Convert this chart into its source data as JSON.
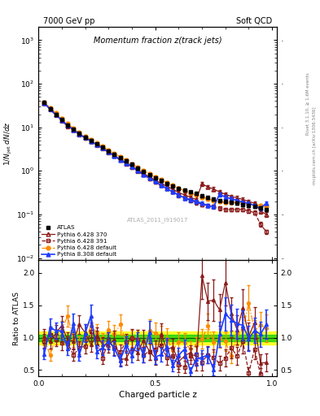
{
  "title_top": "7000 GeV pp",
  "title_right": "Soft QCD",
  "plot_title": "Momentum fraction z(track jets)",
  "ylabel_main": "1/N$_{jet}$ dN/dz",
  "ylabel_ratio": "Ratio to ATLAS",
  "xlabel": "Charged particle z",
  "right_label_top": "Rivet 3.1.10, ≥ 1.6M events",
  "right_label_bot": "mcplots.cern.ch [arXiv:1306.3436]",
  "watermark": "ATLAS_2011_I919017",
  "atlas_x": [
    0.025,
    0.05,
    0.075,
    0.1,
    0.125,
    0.15,
    0.175,
    0.2,
    0.225,
    0.25,
    0.275,
    0.3,
    0.325,
    0.35,
    0.375,
    0.4,
    0.425,
    0.45,
    0.475,
    0.5,
    0.525,
    0.55,
    0.575,
    0.6,
    0.625,
    0.65,
    0.675,
    0.7,
    0.725,
    0.75,
    0.775,
    0.8,
    0.825,
    0.85,
    0.875,
    0.9,
    0.925,
    0.95,
    0.975
  ],
  "atlas_y": [
    38,
    27,
    20,
    15,
    11,
    9,
    7.2,
    6.0,
    5.0,
    4.2,
    3.5,
    2.9,
    2.4,
    2.0,
    1.7,
    1.4,
    1.15,
    0.95,
    0.8,
    0.7,
    0.6,
    0.52,
    0.45,
    0.4,
    0.36,
    0.33,
    0.31,
    0.27,
    0.25,
    0.23,
    0.21,
    0.2,
    0.19,
    0.18,
    0.17,
    0.16,
    0.15,
    0.14,
    0.13
  ],
  "atlas_ey": [
    2.0,
    1.5,
    1.1,
    0.8,
    0.6,
    0.5,
    0.4,
    0.35,
    0.3,
    0.25,
    0.22,
    0.18,
    0.15,
    0.13,
    0.11,
    0.09,
    0.08,
    0.07,
    0.06,
    0.05,
    0.04,
    0.04,
    0.03,
    0.03,
    0.03,
    0.02,
    0.02,
    0.02,
    0.02,
    0.02,
    0.015,
    0.015,
    0.015,
    0.015,
    0.015,
    0.015,
    0.012,
    0.012,
    0.012
  ],
  "py6370_x": [
    0.025,
    0.05,
    0.075,
    0.1,
    0.125,
    0.15,
    0.175,
    0.2,
    0.225,
    0.25,
    0.275,
    0.3,
    0.325,
    0.35,
    0.375,
    0.4,
    0.425,
    0.45,
    0.475,
    0.5,
    0.525,
    0.55,
    0.575,
    0.6,
    0.625,
    0.65,
    0.675,
    0.7,
    0.725,
    0.75,
    0.775,
    0.8,
    0.825,
    0.85,
    0.875,
    0.9,
    0.925,
    0.95,
    0.975
  ],
  "py6370_y": [
    36,
    26,
    19.5,
    14.5,
    11.0,
    8.8,
    7.0,
    5.8,
    4.8,
    4.0,
    3.35,
    2.75,
    2.25,
    1.85,
    1.55,
    1.28,
    1.05,
    0.87,
    0.73,
    0.61,
    0.52,
    0.44,
    0.38,
    0.32,
    0.28,
    0.25,
    0.22,
    0.5,
    0.43,
    0.38,
    0.33,
    0.29,
    0.26,
    0.24,
    0.22,
    0.2,
    0.18,
    0.12,
    0.1
  ],
  "py6370_ey": [
    2.0,
    1.5,
    1.1,
    0.9,
    0.7,
    0.5,
    0.4,
    0.35,
    0.3,
    0.25,
    0.22,
    0.18,
    0.15,
    0.13,
    0.11,
    0.09,
    0.08,
    0.07,
    0.06,
    0.05,
    0.04,
    0.04,
    0.03,
    0.03,
    0.03,
    0.02,
    0.02,
    0.05,
    0.04,
    0.04,
    0.03,
    0.03,
    0.025,
    0.025,
    0.022,
    0.02,
    0.018,
    0.015,
    0.012
  ],
  "py6391_x": [
    0.025,
    0.05,
    0.075,
    0.1,
    0.125,
    0.15,
    0.175,
    0.2,
    0.225,
    0.25,
    0.275,
    0.3,
    0.325,
    0.35,
    0.375,
    0.4,
    0.425,
    0.45,
    0.475,
    0.5,
    0.525,
    0.55,
    0.575,
    0.6,
    0.625,
    0.65,
    0.675,
    0.7,
    0.725,
    0.75,
    0.775,
    0.8,
    0.825,
    0.85,
    0.875,
    0.9,
    0.925,
    0.95,
    0.975
  ],
  "py6391_y": [
    35,
    25.5,
    19.0,
    14.0,
    10.5,
    8.5,
    6.8,
    5.6,
    4.7,
    3.9,
    3.25,
    2.65,
    2.15,
    1.75,
    1.45,
    1.2,
    0.98,
    0.8,
    0.66,
    0.55,
    0.46,
    0.39,
    0.33,
    0.28,
    0.24,
    0.21,
    0.19,
    0.17,
    0.16,
    0.15,
    0.14,
    0.13,
    0.13,
    0.13,
    0.13,
    0.12,
    0.11,
    0.06,
    0.04
  ],
  "py6391_ey": [
    2.0,
    1.4,
    1.0,
    0.8,
    0.6,
    0.5,
    0.4,
    0.35,
    0.3,
    0.25,
    0.2,
    0.17,
    0.14,
    0.12,
    0.1,
    0.09,
    0.07,
    0.06,
    0.05,
    0.04,
    0.04,
    0.03,
    0.03,
    0.03,
    0.02,
    0.02,
    0.02,
    0.02,
    0.015,
    0.015,
    0.014,
    0.013,
    0.013,
    0.013,
    0.013,
    0.012,
    0.011,
    0.007,
    0.005
  ],
  "py6def_x": [
    0.025,
    0.05,
    0.075,
    0.1,
    0.125,
    0.15,
    0.175,
    0.2,
    0.225,
    0.25,
    0.275,
    0.3,
    0.325,
    0.35,
    0.375,
    0.4,
    0.425,
    0.45,
    0.475,
    0.5,
    0.525,
    0.55,
    0.575,
    0.6,
    0.625,
    0.65,
    0.675,
    0.7,
    0.725,
    0.75,
    0.775,
    0.8,
    0.825,
    0.85,
    0.875,
    0.9,
    0.925,
    0.95,
    0.975
  ],
  "py6def_y": [
    37,
    28,
    21,
    16,
    12,
    9.5,
    7.5,
    6.2,
    5.2,
    4.3,
    3.6,
    3.0,
    2.5,
    2.1,
    1.75,
    1.45,
    1.2,
    1.0,
    0.85,
    0.72,
    0.62,
    0.53,
    0.46,
    0.4,
    0.35,
    0.31,
    0.28,
    0.25,
    0.23,
    0.21,
    0.2,
    0.19,
    0.19,
    0.19,
    0.19,
    0.18,
    0.17,
    0.16,
    0.15
  ],
  "py6def_ey": [
    2.0,
    1.6,
    1.2,
    0.9,
    0.7,
    0.55,
    0.43,
    0.36,
    0.3,
    0.26,
    0.22,
    0.19,
    0.16,
    0.13,
    0.11,
    0.09,
    0.08,
    0.07,
    0.06,
    0.05,
    0.04,
    0.04,
    0.03,
    0.03,
    0.025,
    0.022,
    0.02,
    0.018,
    0.016,
    0.015,
    0.014,
    0.013,
    0.013,
    0.013,
    0.013,
    0.012,
    0.012,
    0.012,
    0.012
  ],
  "py8def_x": [
    0.025,
    0.05,
    0.075,
    0.1,
    0.125,
    0.15,
    0.175,
    0.2,
    0.225,
    0.25,
    0.275,
    0.3,
    0.325,
    0.35,
    0.375,
    0.4,
    0.425,
    0.45,
    0.475,
    0.5,
    0.525,
    0.55,
    0.575,
    0.6,
    0.625,
    0.65,
    0.675,
    0.7,
    0.725,
    0.75,
    0.775,
    0.8,
    0.825,
    0.85,
    0.875,
    0.9,
    0.925,
    0.95,
    0.975
  ],
  "py8def_y": [
    36,
    26,
    19.5,
    14.5,
    11.0,
    8.8,
    7.0,
    5.8,
    4.8,
    4.0,
    3.3,
    2.7,
    2.2,
    1.8,
    1.5,
    1.25,
    1.0,
    0.83,
    0.68,
    0.57,
    0.47,
    0.39,
    0.33,
    0.28,
    0.24,
    0.22,
    0.2,
    0.18,
    0.16,
    0.15,
    0.29,
    0.25,
    0.23,
    0.21,
    0.19,
    0.18,
    0.16,
    0.14,
    0.18
  ],
  "py8def_ey": [
    2.0,
    1.5,
    1.1,
    0.9,
    0.7,
    0.5,
    0.4,
    0.35,
    0.3,
    0.25,
    0.22,
    0.18,
    0.15,
    0.12,
    0.1,
    0.09,
    0.07,
    0.06,
    0.05,
    0.04,
    0.035,
    0.03,
    0.025,
    0.022,
    0.02,
    0.018,
    0.016,
    0.014,
    0.013,
    0.012,
    0.03,
    0.025,
    0.022,
    0.02,
    0.018,
    0.016,
    0.014,
    0.012,
    0.015
  ],
  "color_atlas": "#000000",
  "color_py6370": "#8B1A1A",
  "color_py6391": "#8B1A1A",
  "color_py6def": "#FF8C00",
  "color_py8def": "#1E3CFF",
  "band_yellow": 0.1,
  "band_green": 0.05,
  "xlim": [
    0.0,
    1.02
  ],
  "ylim_main": [
    0.009,
    2000
  ],
  "ylim_ratio": [
    0.4,
    2.2
  ],
  "ratio_yticks": [
    0.5,
    1.0,
    1.5,
    2.0
  ]
}
